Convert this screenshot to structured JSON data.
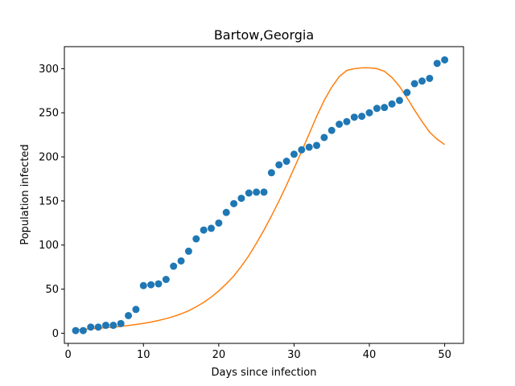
{
  "chart_data": {
    "type": "scatter",
    "title": "Bartow,Georgia",
    "xlabel": "Days since infection",
    "ylabel": "Population infected",
    "xlim": [
      -0.5,
      52.5
    ],
    "ylim": [
      -11.5,
      325
    ],
    "xticks": [
      0,
      10,
      20,
      30,
      40,
      50
    ],
    "yticks": [
      0,
      50,
      100,
      150,
      200,
      250,
      300
    ],
    "grid": false,
    "legend": "none",
    "series": [
      {
        "kind": "scatter",
        "color": "#1f77b4",
        "x": [
          1,
          2,
          3,
          4,
          5,
          6,
          7,
          8,
          9,
          10,
          11,
          12,
          13,
          14,
          15,
          16,
          17,
          18,
          19,
          20,
          21,
          22,
          23,
          24,
          25,
          26,
          27,
          28,
          29,
          30,
          31,
          32,
          33,
          34,
          35,
          36,
          37,
          38,
          39,
          40,
          41,
          42,
          43,
          44,
          45,
          46,
          47,
          48,
          49,
          50
        ],
        "y": [
          3,
          3,
          7,
          7,
          9,
          9,
          11,
          20,
          27,
          54,
          55,
          56,
          61,
          76,
          82,
          93,
          107,
          117,
          119,
          125,
          137,
          147,
          153,
          159,
          160,
          160,
          182,
          191,
          195,
          203,
          208,
          211,
          213,
          222,
          230,
          237,
          240,
          245,
          246,
          250,
          255,
          256,
          260,
          264,
          273,
          283,
          286,
          289,
          306,
          310
        ]
      },
      {
        "kind": "line",
        "color": "#ff7f0e",
        "x": [
          1,
          2,
          3,
          4,
          5,
          6,
          7,
          8,
          9,
          10,
          11,
          12,
          13,
          14,
          15,
          16,
          17,
          18,
          19,
          20,
          21,
          22,
          23,
          24,
          25,
          26,
          27,
          28,
          29,
          30,
          31,
          32,
          33,
          34,
          35,
          36,
          37,
          38,
          39,
          40,
          41,
          42,
          43,
          44,
          45,
          46,
          47,
          48,
          49,
          50
        ],
        "y": [
          4,
          4.5,
          5,
          5.6,
          6.3,
          7,
          7.8,
          8.8,
          9.9,
          11.2,
          12.7,
          14.5,
          16.6,
          19,
          22,
          25.5,
          30,
          35,
          41,
          48,
          56,
          65,
          76,
          88,
          102,
          117,
          133,
          150,
          168,
          187,
          206,
          226,
          246,
          264,
          279,
          291,
          298,
          300,
          301,
          301,
          300,
          297,
          290,
          280,
          267,
          253,
          240,
          228,
          220,
          214
        ]
      }
    ]
  }
}
